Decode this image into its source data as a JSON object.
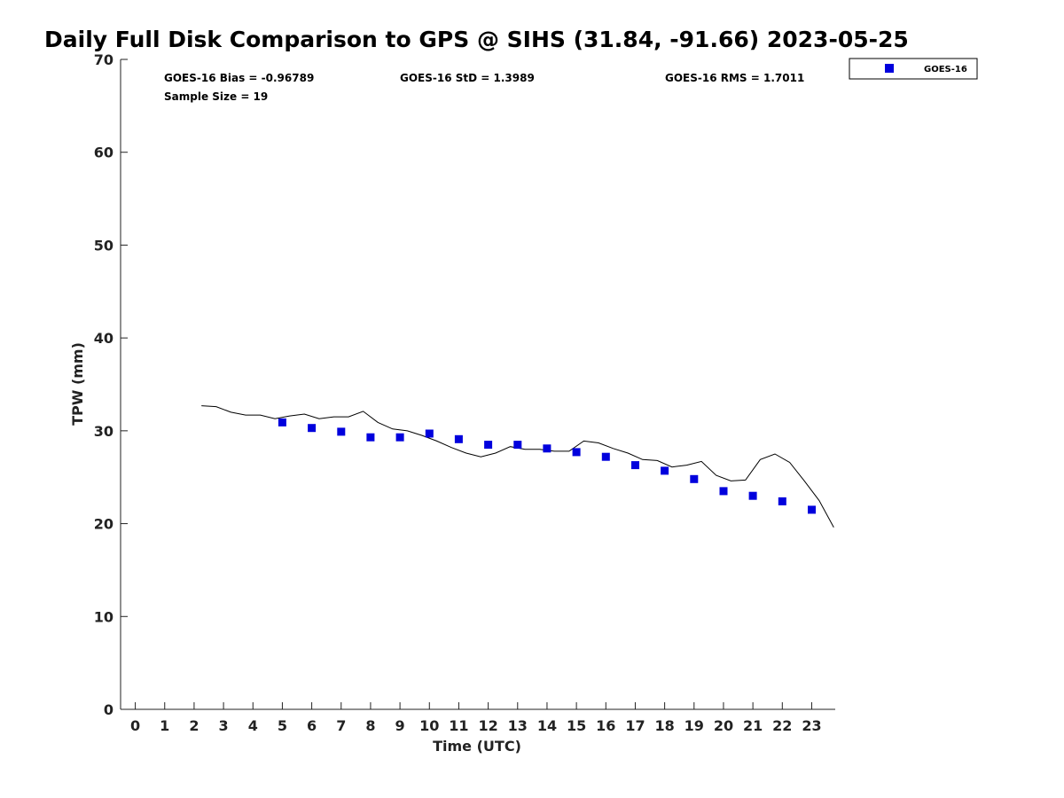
{
  "chart_data": {
    "type": "scatter",
    "title": "Daily Full Disk Comparison to GPS @ SIHS (31.84, -91.66) 2023-05-25",
    "xlabel": "Time (UTC)",
    "ylabel": "TPW (mm)",
    "xlim": [
      -0.5,
      23.8
    ],
    "ylim": [
      0,
      70
    ],
    "x_ticks": [
      0,
      1,
      2,
      3,
      4,
      5,
      6,
      7,
      8,
      9,
      10,
      11,
      12,
      13,
      14,
      15,
      16,
      17,
      18,
      19,
      20,
      21,
      22,
      23
    ],
    "y_ticks": [
      0,
      10,
      20,
      30,
      40,
      50,
      60,
      70
    ],
    "grid": false,
    "legend_position": "top-right",
    "stats": {
      "bias": "GOES-16 Bias = -0.96789",
      "std": "GOES-16 StD = 1.3989",
      "rms": "GOES-16 RMS = 1.7011",
      "sample_size": "Sample Size = 19"
    },
    "series": [
      {
        "name": "GOES-16",
        "kind": "scatter",
        "marker": "square",
        "color": "#0000dd",
        "x": [
          5,
          6,
          7,
          8,
          9,
          10,
          11,
          12,
          13,
          14,
          15,
          16,
          17,
          18,
          19,
          20,
          21,
          22,
          23
        ],
        "y": [
          30.9,
          30.3,
          29.9,
          29.3,
          29.3,
          29.7,
          29.1,
          28.5,
          28.5,
          28.1,
          27.7,
          27.2,
          26.3,
          25.7,
          24.8,
          23.5,
          23.0,
          22.4,
          21.5
        ]
      },
      {
        "kind": "line",
        "color": "#000000",
        "x": [
          2.25,
          2.75,
          3.25,
          3.75,
          4.25,
          4.75,
          5.25,
          5.75,
          6.25,
          6.75,
          7.25,
          7.75,
          8.25,
          8.75,
          9.25,
          9.75,
          10.25,
          10.75,
          11.25,
          11.75,
          12.25,
          12.75,
          13.25,
          13.75,
          14.25,
          14.75,
          15.25,
          15.75,
          16.25,
          16.75,
          17.25,
          17.75,
          18.25,
          18.75,
          19.25,
          19.75,
          20.25,
          20.75,
          21.25,
          21.75,
          22.25,
          22.75,
          23.25,
          23.75
        ],
        "y": [
          32.7,
          32.6,
          32.0,
          31.7,
          31.7,
          31.3,
          31.6,
          31.8,
          31.3,
          31.5,
          31.5,
          32.1,
          30.9,
          30.2,
          30.0,
          29.5,
          28.9,
          28.2,
          27.6,
          27.2,
          27.6,
          28.3,
          28.0,
          28.0,
          27.8,
          27.8,
          28.9,
          28.7,
          28.1,
          27.6,
          26.9,
          26.8,
          26.1,
          26.3,
          26.7,
          25.2,
          24.6,
          24.7,
          26.9,
          27.5,
          26.6,
          24.6,
          22.5,
          19.6
        ]
      }
    ]
  }
}
